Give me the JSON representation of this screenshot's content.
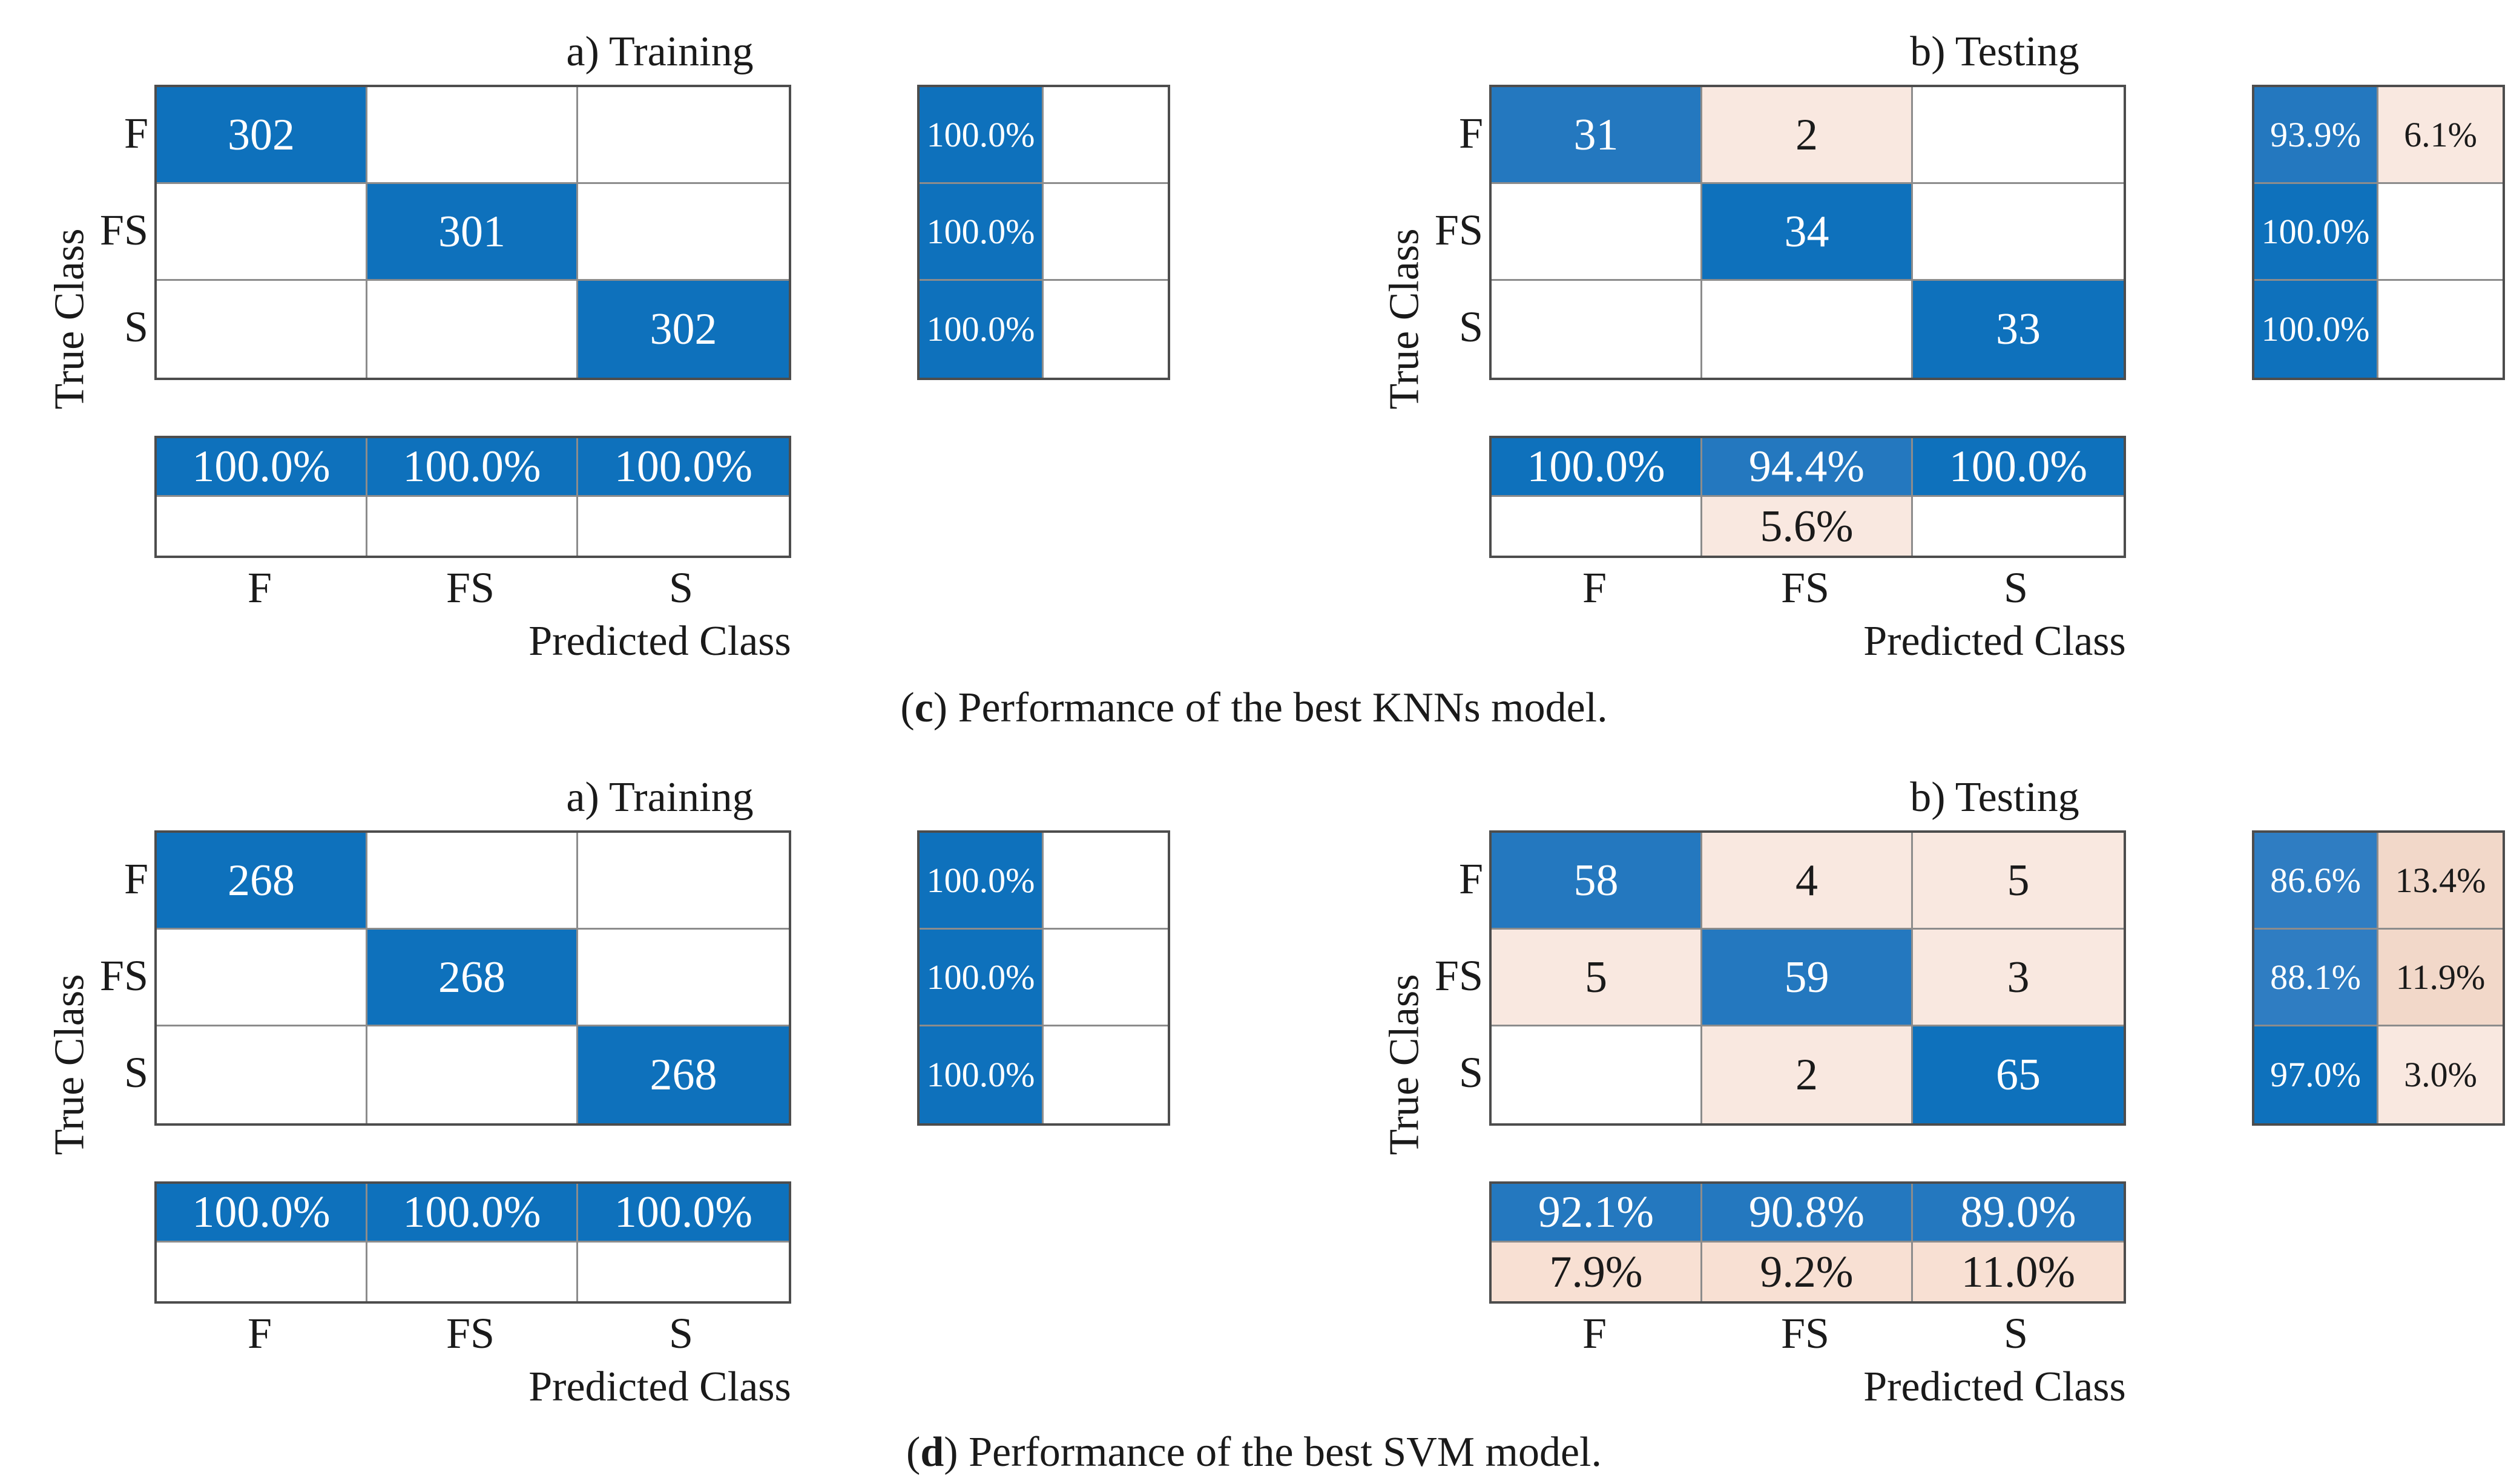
{
  "figure": {
    "background": "#ffffff",
    "colors": {
      "b1": "#0e71bc",
      "b2": "#2478bf",
      "b3": "#2f7dc2",
      "p1": "#f9e8e0",
      "p2": "#f2d8c9",
      "p3": "#f8e0d3",
      "wh": "#ffffff",
      "text_light": "#ffffff",
      "text_dark": "#1a1a1a",
      "border_outer": "#4d4d4d",
      "border_grid": "#8c8c8c"
    },
    "captions": {
      "c": {
        "open": "(",
        "letter": "c",
        "rest": ") Performance of the best KNNs model."
      },
      "d": {
        "open": "(",
        "letter": "d",
        "rest": ") Performance of the best SVM model."
      }
    }
  },
  "chart_data": [
    {
      "id": "knn-training",
      "type": "heatmap",
      "title": "a) Training",
      "xlabel": "Predicted Class",
      "ylabel": "True Class",
      "classes": [
        "F",
        "FS",
        "S"
      ],
      "matrix": [
        [
          {
            "v": "302",
            "f": "b1",
            "t": "w"
          },
          {
            "f": "wh"
          },
          {
            "f": "wh"
          }
        ],
        [
          {
            "f": "wh"
          },
          {
            "v": "301",
            "f": "b1",
            "t": "w"
          },
          {
            "f": "wh"
          }
        ],
        [
          {
            "f": "wh"
          },
          {
            "f": "wh"
          },
          {
            "v": "302",
            "f": "b1",
            "t": "w"
          }
        ]
      ],
      "row_summary": [
        [
          {
            "v": "100.0%",
            "f": "b1",
            "t": "w"
          },
          {
            "f": "wh"
          }
        ],
        [
          {
            "v": "100.0%",
            "f": "b1",
            "t": "w"
          },
          {
            "f": "wh"
          }
        ],
        [
          {
            "v": "100.0%",
            "f": "b1",
            "t": "w"
          },
          {
            "f": "wh"
          }
        ]
      ],
      "col_summary": [
        [
          {
            "v": "100.0%",
            "f": "b1",
            "t": "w"
          },
          {
            "v": "100.0%",
            "f": "b1",
            "t": "w"
          },
          {
            "v": "100.0%",
            "f": "b1",
            "t": "w"
          }
        ],
        [
          {
            "f": "wh"
          },
          {
            "f": "wh"
          },
          {
            "f": "wh"
          }
        ]
      ]
    },
    {
      "id": "knn-testing",
      "type": "heatmap",
      "title": "b) Testing",
      "xlabel": "Predicted Class",
      "ylabel": "True Class",
      "classes": [
        "F",
        "FS",
        "S"
      ],
      "matrix": [
        [
          {
            "v": "31",
            "f": "b2",
            "t": "w"
          },
          {
            "v": "2",
            "f": "p1",
            "t": "k"
          },
          {
            "f": "wh"
          }
        ],
        [
          {
            "f": "wh"
          },
          {
            "v": "34",
            "f": "b1",
            "t": "w"
          },
          {
            "f": "wh"
          }
        ],
        [
          {
            "f": "wh"
          },
          {
            "f": "wh"
          },
          {
            "v": "33",
            "f": "b1",
            "t": "w"
          }
        ]
      ],
      "row_summary": [
        [
          {
            "v": "93.9%",
            "f": "b2",
            "t": "w"
          },
          {
            "v": "6.1%",
            "f": "p1",
            "t": "k"
          }
        ],
        [
          {
            "v": "100.0%",
            "f": "b1",
            "t": "w"
          },
          {
            "f": "wh"
          }
        ],
        [
          {
            "v": "100.0%",
            "f": "b1",
            "t": "w"
          },
          {
            "f": "wh"
          }
        ]
      ],
      "col_summary": [
        [
          {
            "v": "100.0%",
            "f": "b1",
            "t": "w"
          },
          {
            "v": "94.4%",
            "f": "b2",
            "t": "w"
          },
          {
            "v": "100.0%",
            "f": "b1",
            "t": "w"
          }
        ],
        [
          {
            "f": "wh"
          },
          {
            "v": "5.6%",
            "f": "p1",
            "t": "k"
          },
          {
            "f": "wh"
          }
        ]
      ]
    },
    {
      "id": "svm-training",
      "type": "heatmap",
      "title": "a) Training",
      "xlabel": "Predicted Class",
      "ylabel": "True Class",
      "classes": [
        "F",
        "FS",
        "S"
      ],
      "matrix": [
        [
          {
            "v": "268",
            "f": "b1",
            "t": "w"
          },
          {
            "f": "wh"
          },
          {
            "f": "wh"
          }
        ],
        [
          {
            "f": "wh"
          },
          {
            "v": "268",
            "f": "b1",
            "t": "w"
          },
          {
            "f": "wh"
          }
        ],
        [
          {
            "f": "wh"
          },
          {
            "f": "wh"
          },
          {
            "v": "268",
            "f": "b1",
            "t": "w"
          }
        ]
      ],
      "row_summary": [
        [
          {
            "v": "100.0%",
            "f": "b1",
            "t": "w"
          },
          {
            "f": "wh"
          }
        ],
        [
          {
            "v": "100.0%",
            "f": "b1",
            "t": "w"
          },
          {
            "f": "wh"
          }
        ],
        [
          {
            "v": "100.0%",
            "f": "b1",
            "t": "w"
          },
          {
            "f": "wh"
          }
        ]
      ],
      "col_summary": [
        [
          {
            "v": "100.0%",
            "f": "b1",
            "t": "w"
          },
          {
            "v": "100.0%",
            "f": "b1",
            "t": "w"
          },
          {
            "v": "100.0%",
            "f": "b1",
            "t": "w"
          }
        ],
        [
          {
            "f": "wh"
          },
          {
            "f": "wh"
          },
          {
            "f": "wh"
          }
        ]
      ]
    },
    {
      "id": "svm-testing",
      "type": "heatmap",
      "title": "b) Testing",
      "xlabel": "Predicted Class",
      "ylabel": "True Class",
      "classes": [
        "F",
        "FS",
        "S"
      ],
      "matrix": [
        [
          {
            "v": "58",
            "f": "b2",
            "t": "w"
          },
          {
            "v": "4",
            "f": "p1",
            "t": "k"
          },
          {
            "v": "5",
            "f": "p1",
            "t": "k"
          }
        ],
        [
          {
            "v": "5",
            "f": "p1",
            "t": "k"
          },
          {
            "v": "59",
            "f": "b2",
            "t": "w"
          },
          {
            "v": "3",
            "f": "p1",
            "t": "k"
          }
        ],
        [
          {
            "f": "wh"
          },
          {
            "v": "2",
            "f": "p1",
            "t": "k"
          },
          {
            "v": "65",
            "f": "b1",
            "t": "w"
          }
        ]
      ],
      "row_summary": [
        [
          {
            "v": "86.6%",
            "f": "b3",
            "t": "w"
          },
          {
            "v": "13.4%",
            "f": "p2",
            "t": "k"
          }
        ],
        [
          {
            "v": "88.1%",
            "f": "b3",
            "t": "w"
          },
          {
            "v": "11.9%",
            "f": "p2",
            "t": "k"
          }
        ],
        [
          {
            "v": "97.0%",
            "f": "b1",
            "t": "w"
          },
          {
            "v": "3.0%",
            "f": "p1",
            "t": "k"
          }
        ]
      ],
      "col_summary": [
        [
          {
            "v": "92.1%",
            "f": "b2",
            "t": "w"
          },
          {
            "v": "90.8%",
            "f": "b2",
            "t": "w"
          },
          {
            "v": "89.0%",
            "f": "b2",
            "t": "w"
          }
        ],
        [
          {
            "v": "7.9%",
            "f": "p3",
            "t": "k"
          },
          {
            "v": "9.2%",
            "f": "p3",
            "t": "k"
          },
          {
            "v": "11.0%",
            "f": "p3",
            "t": "k"
          }
        ]
      ]
    }
  ]
}
